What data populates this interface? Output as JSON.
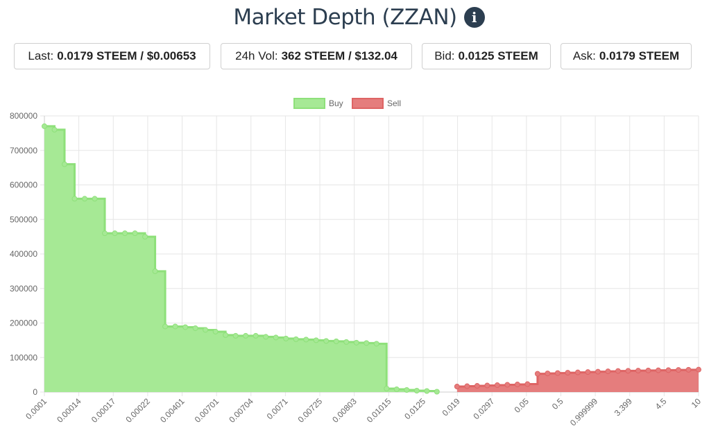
{
  "header": {
    "title": "Market Depth (ZZAN)",
    "info_icon": "info-circle-icon"
  },
  "stats": [
    {
      "label": "Last:",
      "value": "0.0179 STEEM / $0.00653"
    },
    {
      "label": "24h Vol:",
      "value": "362 STEEM / $132.04"
    },
    {
      "label": "Bid:",
      "value": "0.0125 STEEM"
    },
    {
      "label": "Ask:",
      "value": "0.0179 STEEM"
    }
  ],
  "chart_data": {
    "type": "area",
    "legend": [
      {
        "name": "Buy",
        "color": "#a6e995"
      },
      {
        "name": "Sell",
        "color": "#e57d7d"
      }
    ],
    "legend_position": "top-center",
    "grid": true,
    "ylim": [
      0,
      800000
    ],
    "y_ticks": [
      "800000",
      "700000",
      "600000",
      "500000",
      "400000",
      "300000",
      "200000",
      "100000",
      "0"
    ],
    "x_tick_labels": [
      "0.0001",
      "0.00014",
      "0.00017",
      "0.00022",
      "0.00401",
      "0.00701",
      "0.00704",
      "0.0071",
      "0.00725",
      "0.00803",
      "0.01015",
      "0.0125",
      "0.019",
      "0.0297",
      "0.05",
      "0.5",
      "0.999999",
      "3.399",
      "4.5",
      "10"
    ],
    "series": [
      {
        "name": "Buy",
        "color": "#a6e995",
        "stroke": "#8ee07a",
        "values": [
          770000,
          760000,
          660000,
          560000,
          560000,
          560000,
          460000,
          460000,
          460000,
          460000,
          450000,
          350000,
          190000,
          190000,
          188000,
          185000,
          180000,
          175000,
          165000,
          163000,
          163000,
          163000,
          160000,
          158000,
          155000,
          153000,
          152000,
          150000,
          148000,
          147000,
          145000,
          143000,
          142000,
          140000,
          10000,
          8000,
          6000,
          4000,
          3000,
          1000
        ]
      },
      {
        "name": "Sell",
        "color": "#e57d7d",
        "stroke": "#de6464",
        "values": [
          16000,
          17000,
          18000,
          19000,
          20000,
          21000,
          22000,
          23000,
          53000,
          54000,
          55000,
          56000,
          57000,
          58000,
          59000,
          60000,
          61000,
          61500,
          62000,
          62500,
          63000,
          63500,
          64000,
          64500,
          65000
        ]
      }
    ]
  }
}
